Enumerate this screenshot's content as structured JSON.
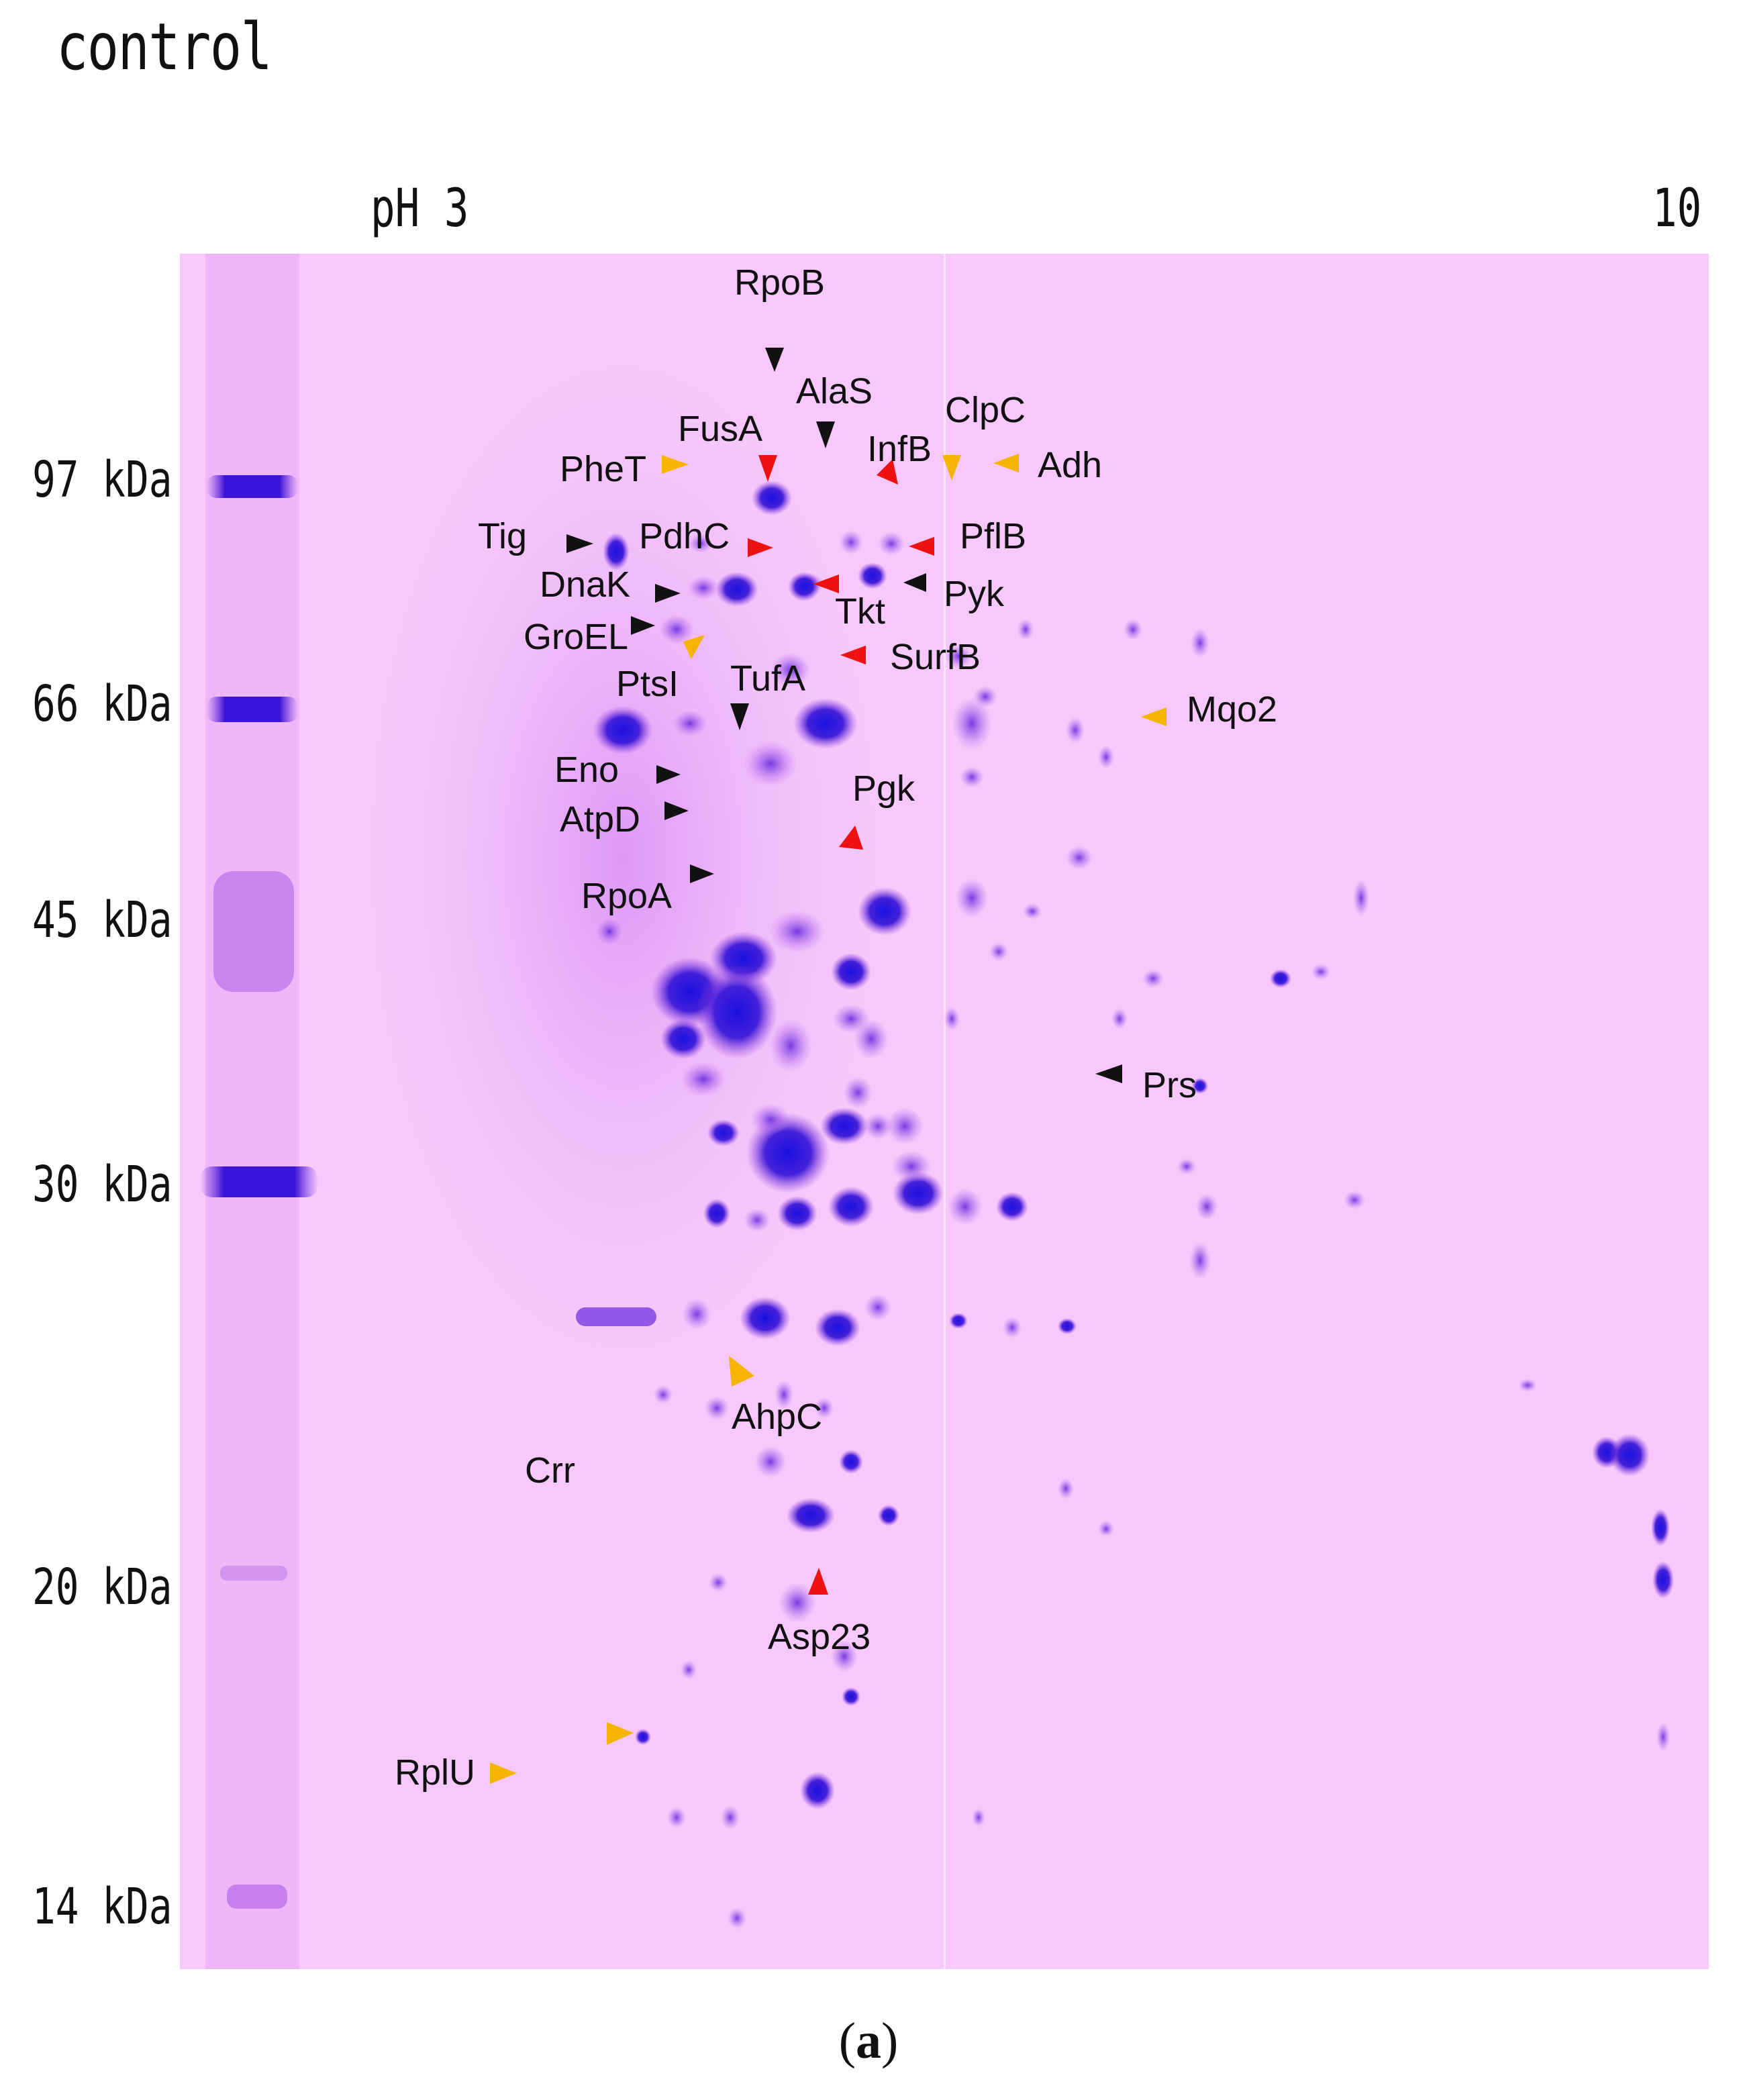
{
  "title": "control",
  "ph_axis": {
    "start": "pH 3",
    "end": "10"
  },
  "mw_markers": [
    "97 kDa",
    "66 kDa",
    "45 kDa",
    "30 kDa",
    "20 kDa",
    "14 kDa"
  ],
  "protein_labels": {
    "rpob": "RpoB",
    "alas": "AlaS",
    "clpc": "ClpC",
    "fusa": "FusA",
    "infb": "InfB",
    "phet": "PheT",
    "adh": "Adh",
    "tig": "Tig",
    "pdhc": "PdhC",
    "pflb": "PflB",
    "dnak": "DnaK",
    "pyk": "Pyk",
    "tkt": "Tkt",
    "groel": "GroEL",
    "surfb": "SurfB",
    "ptsi": "PtsI",
    "tufa": "TufA",
    "mqo2": "Mqo2",
    "eno": "Eno",
    "pgk": "Pgk",
    "atpd": "AtpD",
    "rpoa": "RpoA",
    "prs": "Prs",
    "ahpc": "AhpC",
    "crr": "Crr",
    "asp23": "Asp23",
    "rplu": "RplU"
  },
  "arrow_colors": {
    "black": "#111111",
    "red": "#ee1111",
    "orange": "#f5b400"
  },
  "caption": {
    "open": "(",
    "letter": "a",
    "close": ")"
  }
}
